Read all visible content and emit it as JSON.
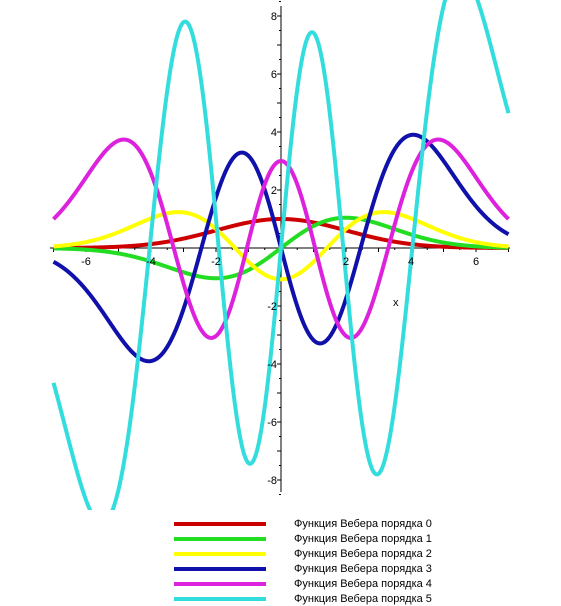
{
  "chart_data": {
    "type": "line",
    "xlabel": "x",
    "ylabel": "",
    "xlim": [
      -7,
      7
    ],
    "ylim": [
      -8.5,
      8.5
    ],
    "x_ticks": [
      -6,
      -4,
      -2,
      2,
      4,
      6
    ],
    "y_ticks": [
      -8,
      -6,
      -4,
      -2,
      2,
      4,
      6,
      8
    ],
    "grid": false,
    "legend_position": "bottom",
    "series": [
      {
        "name": "Функция Вебера порядка 0",
        "order": 0,
        "color": "#cc0000",
        "scale": 1.0
      },
      {
        "name": "Функция Вебера порядка 1",
        "order": 1,
        "color": "#22dd22",
        "scale": 0.86
      },
      {
        "name": "Функция Вебера порядка 2",
        "order": 2,
        "color": "#ffff00",
        "scale": 0.54
      },
      {
        "name": "Функция Вебера порядка 3",
        "order": 3,
        "color": "#1010aa",
        "scale": 0.72
      },
      {
        "name": "Функция Вебера порядка 4",
        "order": 4,
        "color": "#dd22dd",
        "scale": 0.25
      },
      {
        "name": "Функция Вебера порядка 5",
        "order": 5,
        "color": "#33dddd",
        "scale": 0.205
      }
    ]
  }
}
